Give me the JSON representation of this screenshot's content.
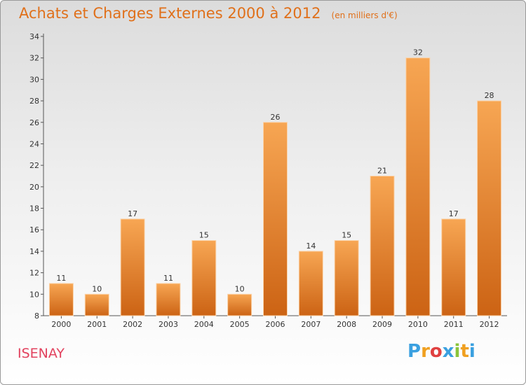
{
  "header": {
    "title": "Achats et Charges Externes 2000 à 2012",
    "subtitle": "(en milliers d'€)"
  },
  "footer": {
    "commune": "ISENAY",
    "logo_text": "Proxiti"
  },
  "colors": {
    "accent": "#e0701a",
    "commune": "#e2425e",
    "bar_top": "#f7a653",
    "bar_bottom": "#cc6314"
  },
  "chart_data": {
    "type": "bar",
    "title": "Achats et Charges Externes 2000 à 2012",
    "subtitle": "(en milliers d'€)",
    "categories": [
      "2000",
      "2001",
      "2002",
      "2003",
      "2004",
      "2005",
      "2006",
      "2007",
      "2008",
      "2009",
      "2010",
      "2011",
      "2012"
    ],
    "values": [
      11,
      10,
      17,
      11,
      15,
      10,
      26,
      14,
      15,
      21,
      32,
      17,
      28
    ],
    "ylim": [
      8,
      34
    ],
    "yticks": [
      8,
      10,
      12,
      14,
      16,
      18,
      20,
      22,
      24,
      26,
      28,
      30,
      32,
      34
    ],
    "grid": false,
    "xlabel": "",
    "ylabel": ""
  }
}
